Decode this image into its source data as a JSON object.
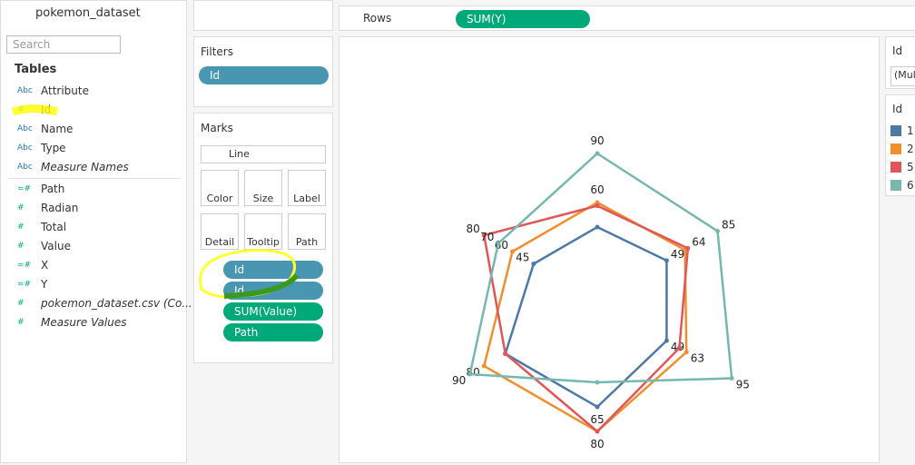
{
  "header": {
    "title": "pokemon_dataset",
    "search": "Search"
  },
  "tables": {
    "title": "Tables",
    "fields": [
      {
        "icon": "Abc",
        "name": "Attribute"
      },
      {
        "icon": "#",
        "name": "Id"
      },
      {
        "icon": "Abc",
        "name": "Name"
      },
      {
        "icon": "Abc",
        "name": "Type"
      },
      {
        "icon": "Abc",
        "name": "Measure Names",
        "italic": true
      },
      {
        "icon": "=#",
        "name": "Path"
      },
      {
        "icon": "#",
        "name": "Radian"
      },
      {
        "icon": "#",
        "name": "Total"
      },
      {
        "icon": "#",
        "name": "Value"
      },
      {
        "icon": "=#",
        "name": "X"
      },
      {
        "icon": "=#",
        "name": "Y"
      },
      {
        "icon": "#",
        "name": "pokemon_dataset.csv (Co...",
        "italic": true
      },
      {
        "icon": "#",
        "name": "Measure Values",
        "italic": true
      }
    ]
  },
  "rows": {
    "label": "Rows",
    "pill": "SUM(Y)"
  },
  "filters": {
    "title": "Filters",
    "pill": "Id"
  },
  "marks": {
    "title": "Marks",
    "mark_type": "Line",
    "buttons": [
      "Color",
      "Size",
      "Label",
      "Detail",
      "Tooltip",
      "Path"
    ],
    "pills": [
      {
        "name": "Id",
        "color": "#4996b2"
      },
      {
        "name": "Id",
        "color": "#4996b2"
      },
      {
        "name": "SUM(Value)",
        "color": "#00a97a"
      },
      {
        "name": "Path",
        "color": "#00a97a"
      }
    ]
  },
  "filter_card": {
    "title": "Id",
    "value": "(Mul"
  },
  "chart_data": {
    "type": "radar",
    "rlim": [
      0,
      100
    ],
    "series": [
      {
        "name": "1",
        "color": "#4e79a7",
        "values": [
          45,
          49,
          49,
          65,
          65,
          45
        ],
        "value_labels": [
          null,
          49,
          49,
          65,
          null,
          45
        ]
      },
      {
        "name": "2",
        "color": "#f28e2b",
        "values": [
          60,
          62,
          63,
          80,
          80,
          60
        ],
        "value_labels": [
          60,
          null,
          63,
          80,
          80,
          60
        ]
      },
      {
        "name": "5",
        "color": "#e15759",
        "values": [
          58,
          64,
          58,
          80,
          65,
          80
        ],
        "value_labels": [
          null,
          64,
          null,
          null,
          null,
          80
        ]
      },
      {
        "name": "6",
        "color": "#76b7b2",
        "values": [
          90,
          85,
          95,
          50,
          90,
          70
        ],
        "value_labels": [
          90,
          85,
          95,
          null,
          90,
          70
        ]
      }
    ],
    "legend_title": "Id"
  }
}
